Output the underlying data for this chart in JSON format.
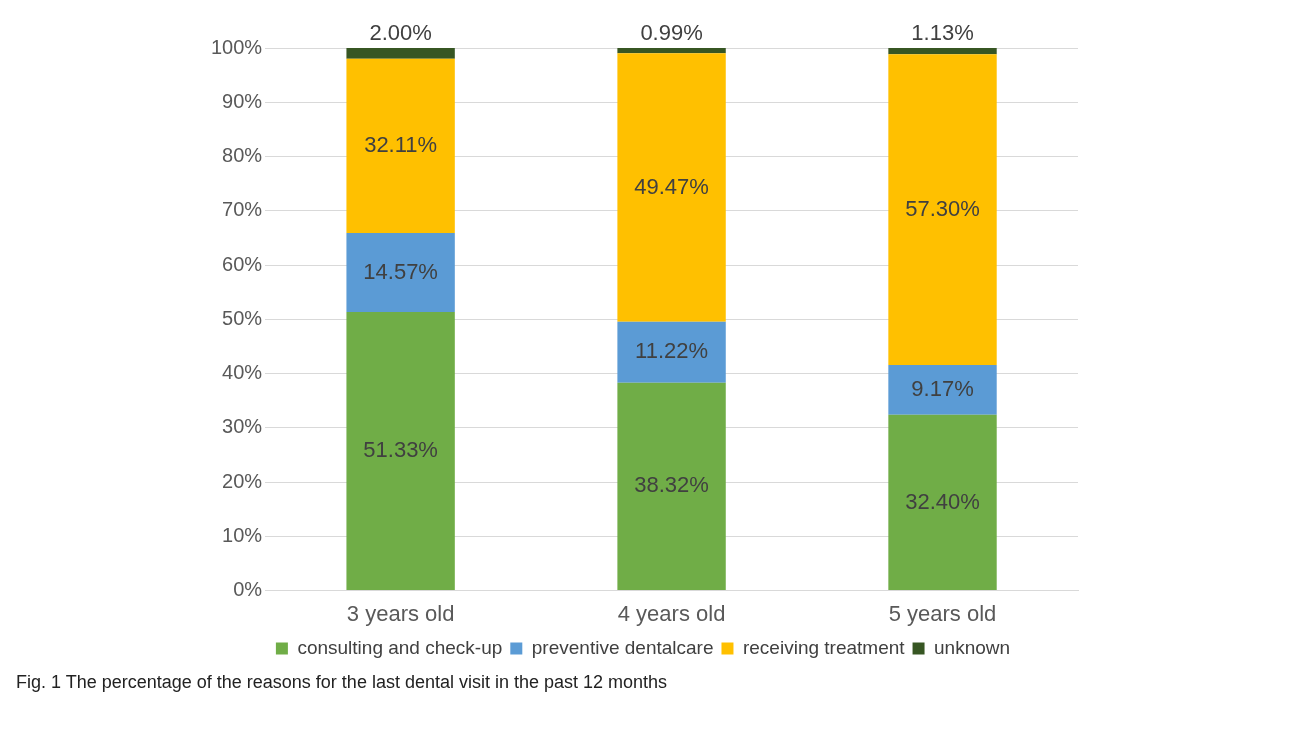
{
  "chart_data": {
    "type": "bar",
    "stacked": true,
    "categories": [
      "3 years old",
      "4 years old",
      "5 years old"
    ],
    "series": [
      {
        "name": "consulting and check-up",
        "color": "#70ad47",
        "values": [
          51.33,
          38.32,
          32.4
        ],
        "value_labels": [
          "51.33%",
          "38.32%",
          "32.40%"
        ]
      },
      {
        "name": "preventive dentalcare",
        "color": "#5b9bd5",
        "values": [
          14.57,
          11.22,
          9.17
        ],
        "value_labels": [
          "14.57%",
          "11.22%",
          "9.17%"
        ]
      },
      {
        "name": "receiving treatment",
        "color": "#ffc000",
        "values": [
          32.11,
          49.47,
          57.3
        ],
        "value_labels": [
          "32.11%",
          "49.47%",
          "57.30%"
        ]
      },
      {
        "name": "unknown",
        "color": "#375623",
        "values": [
          2.0,
          0.99,
          1.13
        ],
        "value_labels": [
          "2.00%",
          "0.99%",
          "1.13%"
        ]
      }
    ],
    "ylim": [
      0,
      100
    ],
    "yticks": [
      {
        "value": 0,
        "label": "0%"
      },
      {
        "value": 10,
        "label": "10%"
      },
      {
        "value": 20,
        "label": "20%"
      },
      {
        "value": 30,
        "label": "30%"
      },
      {
        "value": 40,
        "label": "40%"
      },
      {
        "value": 50,
        "label": "50%"
      },
      {
        "value": 60,
        "label": "60%"
      },
      {
        "value": 70,
        "label": "70%"
      },
      {
        "value": 80,
        "label": "80%"
      },
      {
        "value": 90,
        "label": "90%"
      },
      {
        "value": 100,
        "label": "100%"
      }
    ],
    "grid": "y",
    "legend": "bottom",
    "annotations": [
      "Fig. 1 The percentage of the reasons for the last dental visit in the past 12 months"
    ]
  }
}
